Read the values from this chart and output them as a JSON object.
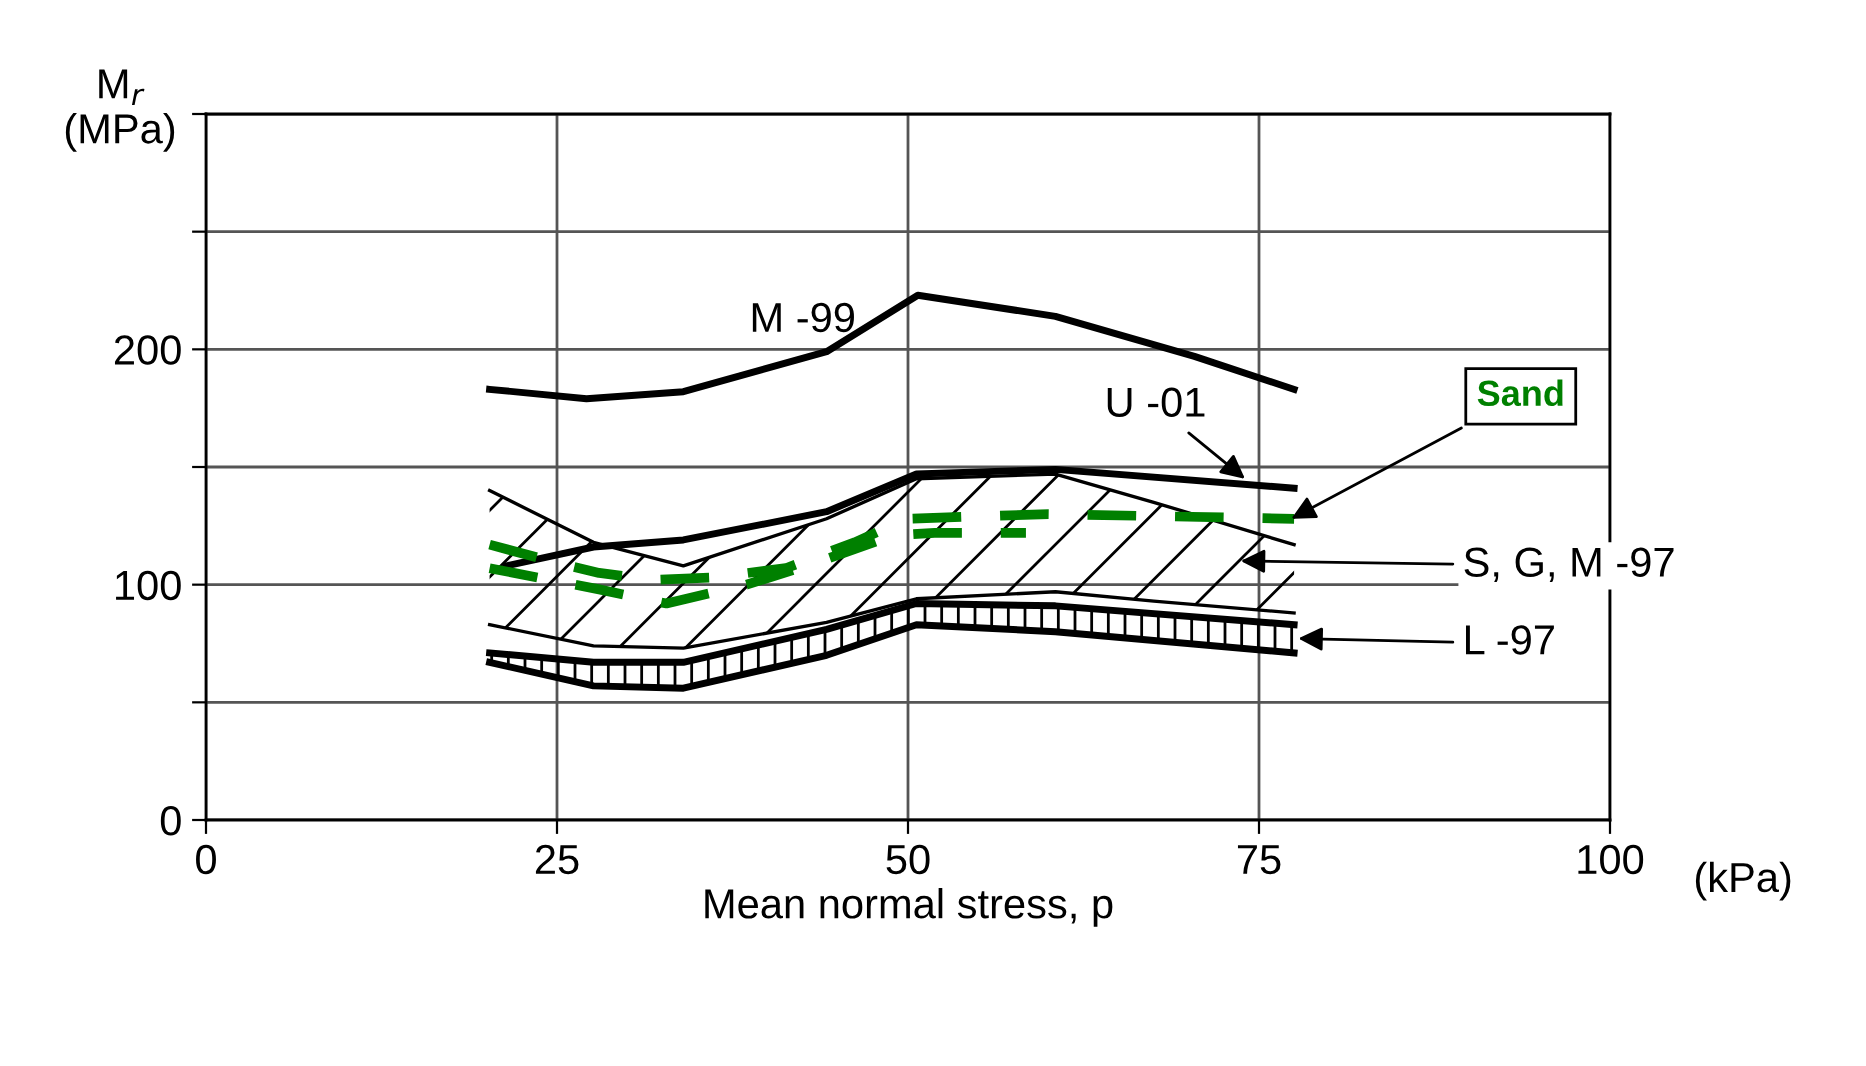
{
  "chart_data": {
    "type": "line",
    "xlabel": "Mean normal stress, p",
    "ylabel": "M$_{r}$\n(MPa)",
    "xlim": [
      0,
      100
    ],
    "xticks": [
      0,
      25,
      50,
      75,
      100
    ],
    "ylim": [
      0,
      300
    ],
    "yticks": [
      0,
      {
        "value": 50,
        "label": null
      },
      100,
      {
        "value": 150,
        "label": null
      },
      200,
      {
        "value": 250,
        "label": null
      },
      {
        "value": 300,
        "label": null
      }
    ],
    "grid": true,
    "marker": "none",
    "series": [
      {
        "type": "line",
        "color": "#000000",
        "x": [
          20.2,
          27.1,
          34.0,
          44.2,
          50.7,
          60.5,
          70.4,
          77.5
        ],
        "values": [
          183,
          179,
          182,
          199,
          223,
          214,
          197,
          183
        ]
      },
      {
        "type": "line",
        "color": "#000000",
        "x": [
          21.4,
          27.6,
          34.0,
          44.2,
          50.6,
          60.5,
          77.5
        ],
        "values": [
          108,
          116,
          119,
          131,
          147,
          149,
          141
        ]
      },
      {
        "type": "area",
        "color": "#000000",
        "x": [
          20.2,
          27.6,
          34.0,
          44.2,
          50.6,
          60.5,
          67.5,
          77.5
        ],
        "values": [
          140,
          118,
          108,
          128,
          145,
          147,
          135,
          117
        ]
      },
      {
        "type": "line",
        "color": "#000000",
        "x": [
          20.2,
          27.6,
          34.0,
          44.2,
          50.6,
          60.5,
          67.5,
          77.5
        ],
        "values": [
          83,
          74,
          73,
          84,
          94,
          97,
          93,
          88
        ]
      },
      {
        "type": "area",
        "color": "#000000",
        "x": [
          20.2,
          27.6,
          34.0,
          44.2,
          50.6,
          60.5,
          77.5
        ],
        "values": [
          71,
          67,
          67,
          81,
          92,
          91,
          83
        ]
      },
      {
        "type": "line",
        "color": "#000000",
        "x": [
          20.2,
          27.6,
          34.0,
          44.2,
          50.6,
          60.5,
          77.5
        ],
        "values": [
          67,
          57,
          56,
          70,
          83,
          80,
          71
        ]
      },
      {
        "type": "line",
        "color": "#008000",
        "line_style": "dashed",
        "x": [
          20.2,
          25.2,
          28.0,
          31.9,
          36.0,
          41.3,
          46.2,
          49.9,
          60.0,
          77.5
        ],
        "values": [
          117,
          109,
          105,
          102,
          103,
          107,
          118,
          128,
          130,
          128
        ]
      },
      {
        "type": "line",
        "color": "#008000",
        "line_style": "dashed",
        "x": [
          20.2,
          28.0,
          32.8,
          38.5,
          43.3,
          49.0,
          51.9,
          58.4
        ],
        "values": [
          107,
          98,
          92,
          100,
          109,
          121,
          122,
          122
        ]
      }
    ],
    "annotations": [
      {
        "text": "M -99",
        "x": 50.7,
        "y": 223
      },
      {
        "text": "U -01",
        "x": 74,
        "y": 145
      },
      {
        "text": "Sand",
        "x": 77.3,
        "y": 128
      },
      "S, G, M -97",
      "L -97",
      "(kPa)"
    ]
  }
}
